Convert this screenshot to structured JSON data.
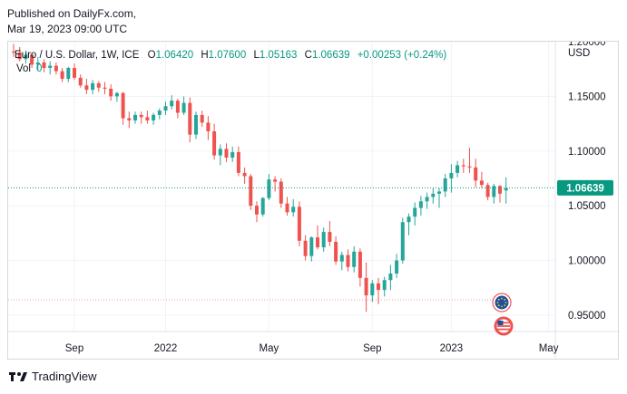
{
  "header": {
    "publisher": "Published on DailyFx.com,",
    "date": "Mar 19, 2023 09:00 UTC"
  },
  "legend": {
    "symbol": "Euro / U.S. Dollar, 1W, ICE",
    "o_label": "O",
    "o_value": "1.06420",
    "h_label": "H",
    "h_value": "1.07600",
    "l_label": "L",
    "l_value": "1.05163",
    "c_label": "C",
    "c_value": "1.06639",
    "change": "+0.00253 (+0.24%)",
    "vol_label": "Vol",
    "vol_value": "0"
  },
  "price_axis": {
    "currency": "USD",
    "ticks": [
      "1.20000",
      "1.15000",
      "1.10000",
      "1.05000",
      "1.00000",
      "0.95000"
    ],
    "last_price": "1.06639"
  },
  "time_axis": {
    "ticks": [
      "Sep",
      "2022",
      "May",
      "Sep",
      "2023",
      "May"
    ]
  },
  "footer": {
    "brand": "TradingView"
  },
  "colors": {
    "up": "#26a69a",
    "down": "#ef5350",
    "last_price": "#089981",
    "grid": "#f0f3fa",
    "axis_text": "#131722"
  },
  "icons": [
    "eu-flag-icon",
    "us-flag-icon",
    "tradingview-logo-icon"
  ],
  "chart_data": {
    "type": "candlestick",
    "title": "Euro / U.S. Dollar, 1W, ICE",
    "ylabel": "USD",
    "ylim": [
      0.935,
      1.2
    ],
    "x_ticks": [
      "Sep",
      "2022",
      "May",
      "Sep",
      "2023",
      "May"
    ],
    "last_price": 1.06639,
    "series": [
      {
        "name": "Euro / U.S. Dollar",
        "ohlc": [
          [
            1.191,
            1.198,
            1.186,
            1.19
          ],
          [
            1.19,
            1.195,
            1.182,
            1.184
          ],
          [
            1.184,
            1.192,
            1.18,
            1.188
          ],
          [
            1.188,
            1.19,
            1.176,
            1.179
          ],
          [
            1.179,
            1.186,
            1.174,
            1.181
          ],
          [
            1.181,
            1.184,
            1.172,
            1.176
          ],
          [
            1.176,
            1.182,
            1.17,
            1.178
          ],
          [
            1.178,
            1.181,
            1.17,
            1.173
          ],
          [
            1.173,
            1.176,
            1.163,
            1.166
          ],
          [
            1.166,
            1.177,
            1.163,
            1.176
          ],
          [
            1.176,
            1.18,
            1.165,
            1.167
          ],
          [
            1.167,
            1.17,
            1.158,
            1.16
          ],
          [
            1.16,
            1.166,
            1.152,
            1.156
          ],
          [
            1.156,
            1.165,
            1.152,
            1.162
          ],
          [
            1.162,
            1.164,
            1.154,
            1.158
          ],
          [
            1.158,
            1.163,
            1.152,
            1.157
          ],
          [
            1.157,
            1.161,
            1.146,
            1.15
          ],
          [
            1.15,
            1.154,
            1.145,
            1.153
          ],
          [
            1.153,
            1.154,
            1.124,
            1.13
          ],
          [
            1.13,
            1.136,
            1.121,
            1.128
          ],
          [
            1.128,
            1.136,
            1.125,
            1.133
          ],
          [
            1.133,
            1.136,
            1.125,
            1.131
          ],
          [
            1.131,
            1.137,
            1.125,
            1.128
          ],
          [
            1.128,
            1.135,
            1.124,
            1.133
          ],
          [
            1.133,
            1.139,
            1.129,
            1.137
          ],
          [
            1.137,
            1.145,
            1.133,
            1.141
          ],
          [
            1.141,
            1.151,
            1.138,
            1.146
          ],
          [
            1.146,
            1.148,
            1.13,
            1.135
          ],
          [
            1.135,
            1.15,
            1.133,
            1.144
          ],
          [
            1.144,
            1.149,
            1.108,
            1.115
          ],
          [
            1.115,
            1.136,
            1.111,
            1.133
          ],
          [
            1.133,
            1.137,
            1.122,
            1.126
          ],
          [
            1.126,
            1.132,
            1.11,
            1.118
          ],
          [
            1.118,
            1.125,
            1.092,
            1.096
          ],
          [
            1.096,
            1.106,
            1.087,
            1.102
          ],
          [
            1.102,
            1.107,
            1.09,
            1.094
          ],
          [
            1.094,
            1.104,
            1.09,
            1.099
          ],
          [
            1.099,
            1.104,
            1.077,
            1.08
          ],
          [
            1.08,
            1.085,
            1.07,
            1.077
          ],
          [
            1.077,
            1.079,
            1.046,
            1.05
          ],
          [
            1.05,
            1.054,
            1.035,
            1.042
          ],
          [
            1.042,
            1.058,
            1.04,
            1.057
          ],
          [
            1.057,
            1.079,
            1.055,
            1.074
          ],
          [
            1.074,
            1.077,
            1.063,
            1.072
          ],
          [
            1.072,
            1.075,
            1.048,
            1.052
          ],
          [
            1.052,
            1.058,
            1.041,
            1.044
          ],
          [
            1.044,
            1.056,
            1.04,
            1.049
          ],
          [
            1.049,
            1.054,
            1.013,
            1.018
          ],
          [
            1.018,
            1.023,
            1.0,
            1.004
          ],
          [
            1.004,
            1.022,
            0.999,
            1.021
          ],
          [
            1.021,
            1.032,
            1.01,
            1.012
          ],
          [
            1.012,
            1.03,
            1.008,
            1.026
          ],
          [
            1.026,
            1.036,
            1.013,
            1.017
          ],
          [
            1.017,
            1.022,
            0.996,
            0.999
          ],
          [
            0.999,
            1.008,
            0.991,
            1.005
          ],
          [
            1.005,
            1.01,
            0.99,
            0.994
          ],
          [
            0.994,
            1.013,
            0.989,
            1.008
          ],
          [
            1.008,
            1.011,
            0.976,
            0.984
          ],
          [
            0.984,
            0.998,
            0.953,
            0.968
          ],
          [
            0.968,
            0.982,
            0.962,
            0.979
          ],
          [
            0.979,
            0.984,
            0.96,
            0.973
          ],
          [
            0.973,
            0.985,
            0.967,
            0.982
          ],
          [
            0.982,
            0.996,
            0.973,
            0.988
          ],
          [
            0.988,
            1.006,
            0.984,
            1.0
          ],
          [
            1.0,
            1.039,
            0.997,
            1.035
          ],
          [
            1.035,
            1.043,
            1.023,
            1.04
          ],
          [
            1.04,
            1.053,
            1.032,
            1.048
          ],
          [
            1.048,
            1.059,
            1.041,
            1.054
          ],
          [
            1.054,
            1.062,
            1.047,
            1.058
          ],
          [
            1.058,
            1.066,
            1.052,
            1.061
          ],
          [
            1.061,
            1.066,
            1.048,
            1.063
          ],
          [
            1.063,
            1.079,
            1.058,
            1.075
          ],
          [
            1.075,
            1.088,
            1.062,
            1.08
          ],
          [
            1.08,
            1.091,
            1.076,
            1.087
          ],
          [
            1.087,
            1.093,
            1.08,
            1.086
          ],
          [
            1.086,
            1.103,
            1.08,
            1.085
          ],
          [
            1.085,
            1.093,
            1.067,
            1.073
          ],
          [
            1.073,
            1.081,
            1.066,
            1.069
          ],
          [
            1.069,
            1.071,
            1.055,
            1.058
          ],
          [
            1.058,
            1.07,
            1.052,
            1.068
          ],
          [
            1.068,
            1.069,
            1.053,
            1.061
          ],
          [
            1.064,
            1.076,
            1.052,
            1.066
          ]
        ]
      }
    ]
  }
}
